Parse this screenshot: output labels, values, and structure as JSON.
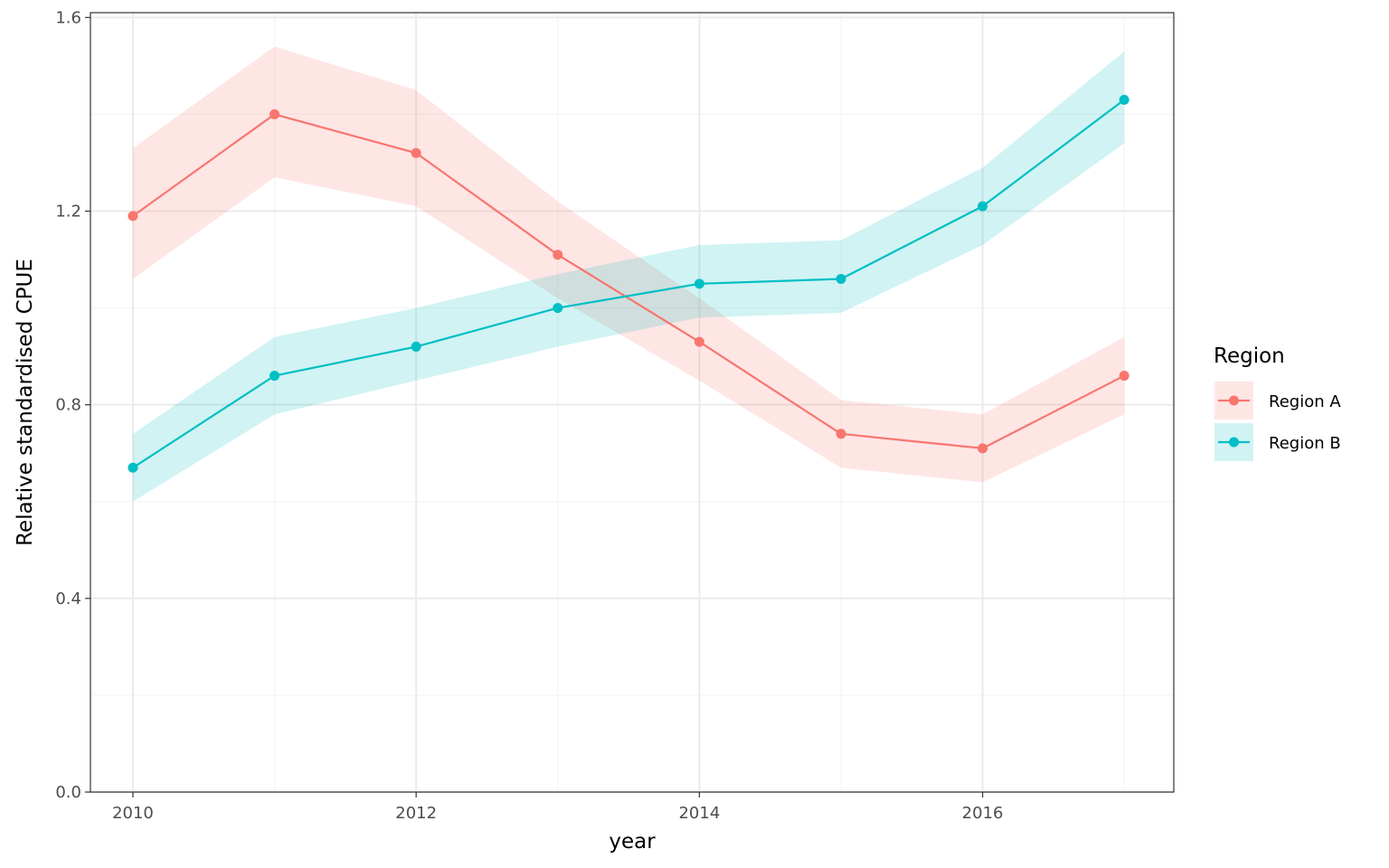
{
  "chart_data": {
    "type": "line",
    "title": "",
    "xlabel": "year",
    "ylabel": "Relative standardised CPUE",
    "x": [
      2010,
      2011,
      2012,
      2013,
      2014,
      2015,
      2016,
      2017
    ],
    "xlim": [
      2009.7,
      2017.35
    ],
    "ylim": [
      0,
      1.61
    ],
    "x_ticks": [
      2010,
      2012,
      2014,
      2016
    ],
    "y_ticks": [
      0.0,
      0.4,
      0.8,
      1.2,
      1.6
    ],
    "y_tick_labels": [
      "0.0",
      "0.4",
      "0.8",
      "1.2",
      "1.6"
    ],
    "grid": true,
    "legend": {
      "title": "Region",
      "position": "right"
    },
    "series": [
      {
        "name": "Region A",
        "color": "#F8766D",
        "values": [
          1.19,
          1.4,
          1.32,
          1.11,
          0.93,
          0.74,
          0.71,
          0.86
        ],
        "lower": [
          1.06,
          1.27,
          1.21,
          1.02,
          0.85,
          0.67,
          0.64,
          0.78
        ],
        "upper": [
          1.33,
          1.54,
          1.45,
          1.22,
          1.02,
          0.81,
          0.78,
          0.94
        ]
      },
      {
        "name": "Region B",
        "color": "#00BFC4",
        "values": [
          0.67,
          0.86,
          0.92,
          1.0,
          1.05,
          1.06,
          1.21,
          1.43
        ],
        "lower": [
          0.6,
          0.78,
          0.85,
          0.92,
          0.98,
          0.99,
          1.13,
          1.34
        ],
        "upper": [
          0.74,
          0.94,
          1.0,
          1.07,
          1.13,
          1.14,
          1.29,
          1.53
        ]
      }
    ]
  }
}
